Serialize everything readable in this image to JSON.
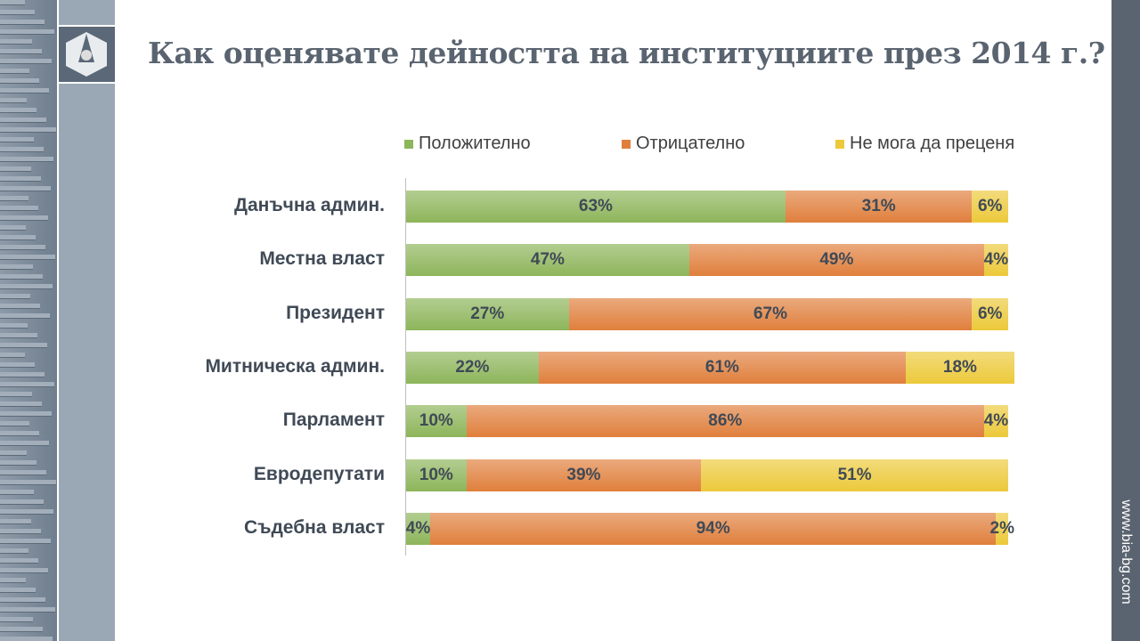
{
  "title": "Как оценявате дейността на институциите през 2014 г.?",
  "website": "www.bia-bg.com",
  "chart_data": {
    "type": "bar",
    "orientation": "horizontal-stacked-100",
    "title": "Как оценявате дейността на институциите през 2014 г.?",
    "legend_position": "top",
    "categories": [
      "Данъчна админ.",
      "Местна власт",
      "Президент",
      "Митническа админ.",
      "Парламент",
      "Евродепутати",
      "Съдебна власт"
    ],
    "series": [
      {
        "name": "Положително",
        "color": "#8db55a",
        "values": [
          63,
          47,
          27,
          22,
          10,
          10,
          4
        ]
      },
      {
        "name": "Отрицателно",
        "color": "#e07f3c",
        "values": [
          31,
          49,
          67,
          61,
          86,
          39,
          94
        ]
      },
      {
        "name": "Не мога да преценя",
        "color": "#ecc93a",
        "values": [
          6,
          4,
          6,
          18,
          4,
          51,
          2
        ]
      }
    ],
    "labels": [
      [
        "63%",
        "31%",
        "6%"
      ],
      [
        "47%",
        "49%",
        "4%"
      ],
      [
        "27%",
        "67%",
        "6%"
      ],
      [
        "22%",
        "61%",
        "18%"
      ],
      [
        "10%",
        "86%",
        "4%"
      ],
      [
        "10%",
        "39%",
        "51%"
      ],
      [
        "4%",
        "94%",
        "2%"
      ]
    ]
  }
}
